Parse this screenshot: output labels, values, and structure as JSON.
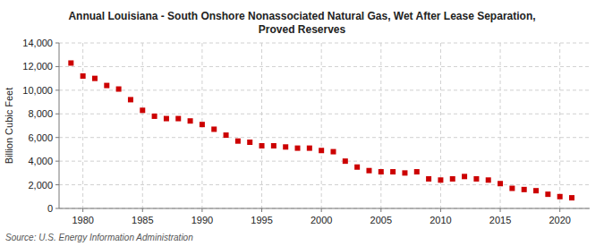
{
  "chart_data": {
    "type": "scatter",
    "title": "Annual Louisiana - South Onshore Nonassociated Natural Gas, Wet After Lease Separation,\nProved Reserves",
    "ylabel": "Billion Cubic Feet",
    "annotations": [
      "Source: U.S. Energy Information Administration"
    ],
    "x": [
      1979,
      1980,
      1981,
      1982,
      1983,
      1984,
      1985,
      1986,
      1987,
      1988,
      1989,
      1990,
      1991,
      1992,
      1993,
      1994,
      1995,
      1996,
      1997,
      1998,
      1999,
      2000,
      2001,
      2002,
      2003,
      2004,
      2005,
      2006,
      2007,
      2008,
      2009,
      2010,
      2011,
      2012,
      2013,
      2014,
      2015,
      2016,
      2017,
      2018,
      2019,
      2020,
      2021
    ],
    "values": [
      12300,
      11200,
      11000,
      10400,
      10100,
      9200,
      8300,
      7800,
      7600,
      7600,
      7400,
      7100,
      6700,
      6200,
      5700,
      5600,
      5300,
      5300,
      5200,
      5100,
      5100,
      4900,
      4800,
      4000,
      3500,
      3200,
      3100,
      3100,
      3000,
      3100,
      2500,
      2400,
      2500,
      2700,
      2500,
      2400,
      2100,
      1700,
      1600,
      1500,
      1200,
      1000,
      900
    ],
    "color": "#cc0000",
    "marker": "square",
    "xlim": [
      1978,
      2022.5
    ],
    "xticks": [
      1980,
      1985,
      1990,
      1995,
      2000,
      2005,
      2010,
      2015,
      2020
    ],
    "ylim": [
      0,
      14000
    ],
    "yticks": [
      0,
      {
        "value": 2000,
        "label": "2,000"
      },
      {
        "value": 4000,
        "label": "4,000"
      },
      {
        "value": 6000,
        "label": "6,000"
      },
      {
        "value": 8000,
        "label": "8,000"
      },
      {
        "value": 10000,
        "label": "10,000"
      },
      {
        "value": 12000,
        "label": "12,000"
      },
      {
        "value": 14000,
        "label": "14,000"
      }
    ],
    "grid": true
  }
}
